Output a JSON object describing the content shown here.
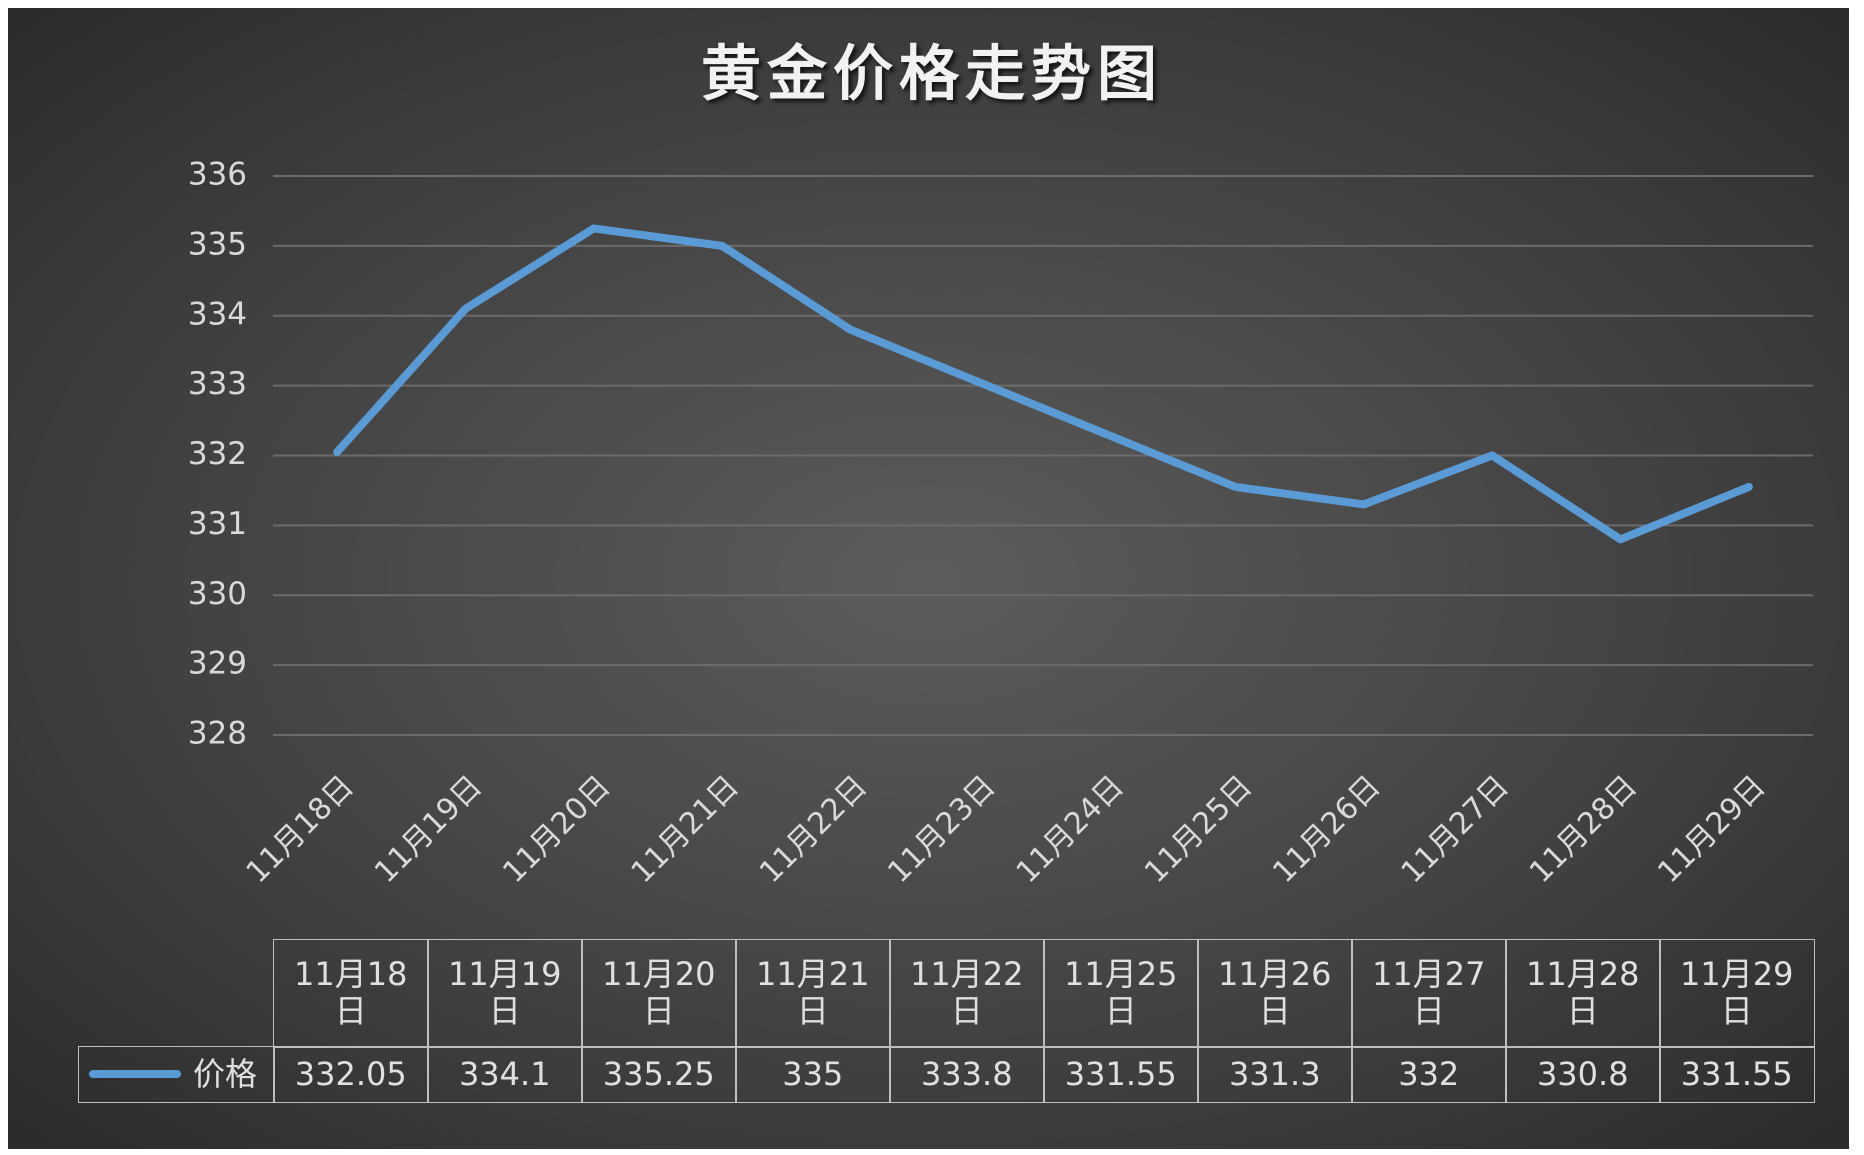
{
  "chart_data": {
    "type": "line",
    "title": "黄金价格走势图",
    "xticks": [
      "11月18日",
      "11月19日",
      "11月20日",
      "11月21日",
      "11月22日",
      "11月23日",
      "11月24日",
      "11月25日",
      "11月26日",
      "11月27日",
      "11月28日",
      "11月29日"
    ],
    "categories": [
      "11月18日",
      "11月19日",
      "11月20日",
      "11月21日",
      "11月22日",
      "11月25日",
      "11月26日",
      "11月27日",
      "11月28日",
      "11月29日"
    ],
    "series": [
      {
        "name": "价格",
        "color": "#5b9bd5",
        "values": [
          332.05,
          334.1,
          335.25,
          335,
          333.8,
          331.55,
          331.3,
          332,
          330.8,
          331.55
        ]
      }
    ],
    "ylim": [
      328,
      336
    ],
    "yticks": [
      328,
      329,
      330,
      331,
      332,
      333,
      334,
      335,
      336
    ],
    "grid": true,
    "data_table": true
  }
}
